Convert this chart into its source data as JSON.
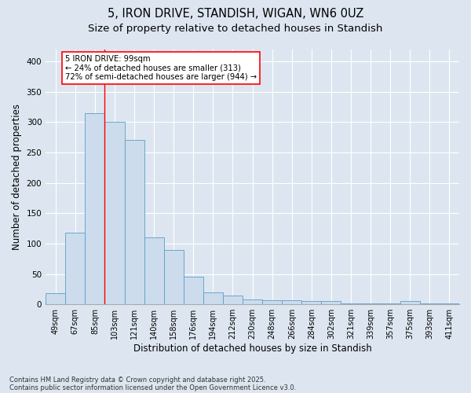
{
  "title_line1": "5, IRON DRIVE, STANDISH, WIGAN, WN6 0UZ",
  "title_line2": "Size of property relative to detached houses in Standish",
  "xlabel": "Distribution of detached houses by size in Standish",
  "ylabel": "Number of detached properties",
  "bar_color": "#ccdcec",
  "bar_edge_color": "#5a9ec8",
  "background_color": "#dde6f0",
  "grid_color": "#ffffff",
  "categories": [
    "49sqm",
    "67sqm",
    "85sqm",
    "103sqm",
    "121sqm",
    "140sqm",
    "158sqm",
    "176sqm",
    "194sqm",
    "212sqm",
    "230sqm",
    "248sqm",
    "266sqm",
    "284sqm",
    "302sqm",
    "321sqm",
    "339sqm",
    "357sqm",
    "375sqm",
    "393sqm",
    "411sqm"
  ],
  "values": [
    18,
    118,
    315,
    300,
    270,
    110,
    90,
    45,
    20,
    15,
    8,
    7,
    7,
    6,
    5,
    2,
    2,
    2,
    5,
    2,
    1
  ],
  "vline_x": 2.5,
  "annotation_text_line1": "5 IRON DRIVE: 99sqm",
  "annotation_text_line2": "← 24% of detached houses are smaller (313)",
  "annotation_text_line3": "72% of semi-detached houses are larger (944) →",
  "annotation_box_color": "white",
  "annotation_box_edge_color": "red",
  "vline_color": "red",
  "footnote_line1": "Contains HM Land Registry data © Crown copyright and database right 2025.",
  "footnote_line2": "Contains public sector information licensed under the Open Government Licence v3.0.",
  "ylim": [
    0,
    420
  ],
  "yticks": [
    0,
    50,
    100,
    150,
    200,
    250,
    300,
    350,
    400
  ],
  "title_fontsize": 10.5,
  "subtitle_fontsize": 9.5,
  "tick_fontsize": 7,
  "label_fontsize": 8.5,
  "footnote_fontsize": 6.0
}
